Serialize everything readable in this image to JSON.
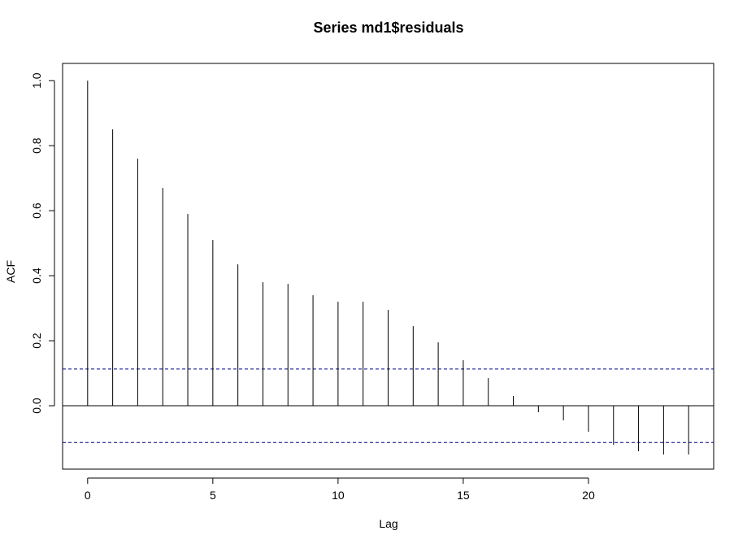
{
  "chart_data": {
    "type": "bar",
    "title": "Series  md1$residuals",
    "xlabel": "Lag",
    "ylabel": "ACF",
    "x": [
      0,
      1,
      2,
      3,
      4,
      5,
      6,
      7,
      8,
      9,
      10,
      11,
      12,
      13,
      14,
      15,
      16,
      17,
      18,
      19,
      20,
      21,
      22,
      23,
      24
    ],
    "values": [
      1.0,
      0.85,
      0.76,
      0.67,
      0.59,
      0.51,
      0.435,
      0.38,
      0.375,
      0.34,
      0.32,
      0.32,
      0.295,
      0.245,
      0.195,
      0.14,
      0.085,
      0.03,
      -0.02,
      -0.045,
      -0.08,
      -0.12,
      -0.14,
      -0.15,
      -0.15
    ],
    "confidence_bound": 0.113,
    "xlim": [
      -1,
      25
    ],
    "ylim": [
      -0.195,
      1.053
    ],
    "xticks": [
      0,
      5,
      10,
      15,
      20
    ],
    "yticks": [
      0.0,
      0.2,
      0.4,
      0.6,
      0.8,
      1.0
    ],
    "xtick_labels": [
      "0",
      "5",
      "10",
      "15",
      "20"
    ],
    "ytick_labels": [
      "0.0",
      "0.2",
      "0.4",
      "0.6",
      "0.8",
      "1.0"
    ],
    "colors": {
      "bars": "#000000",
      "confidence_lines": "#00008B",
      "zero_line": "#000000"
    },
    "grid": false,
    "legend": false
  }
}
